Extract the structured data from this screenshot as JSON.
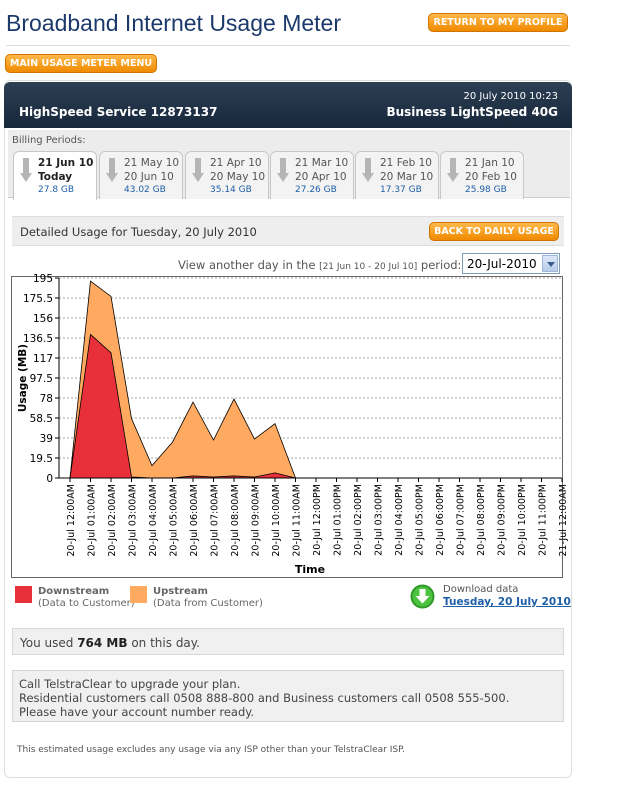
{
  "header": {
    "title": "Broadband Internet Usage Meter",
    "return_button": "RETURN TO MY PROFILE",
    "menu_button": "MAIN USAGE METER MENU"
  },
  "service": {
    "datetime": "20 July 2010 10:23",
    "name": "HighSpeed Service 12873137",
    "plan": "Business LightSpeed 40G"
  },
  "billing": {
    "label": "Billing Periods:",
    "periods": [
      {
        "start": "21 Jun 10",
        "end": "Today",
        "usage": "27.8 GB",
        "active": true
      },
      {
        "start": "21 May 10",
        "end": "20 Jun 10",
        "usage": "43.02 GB",
        "active": false
      },
      {
        "start": "21 Apr 10",
        "end": "20 May 10",
        "usage": "35.14 GB",
        "active": false
      },
      {
        "start": "21 Mar 10",
        "end": "20 Apr 10",
        "usage": "27.26 GB",
        "active": false
      },
      {
        "start": "21 Feb 10",
        "end": "20 Mar 10",
        "usage": "17.37 GB",
        "active": false
      },
      {
        "start": "21 Jan 10",
        "end": "20 Feb 10",
        "usage": "25.98 GB",
        "active": false
      }
    ]
  },
  "detail": {
    "title": "Detailed Usage for Tuesday, 20 July 2010",
    "back_button": "BACK TO DAILY USAGE",
    "view_prefix": "View another day in the",
    "view_range": "[21 Jun 10 - 20 Jul 10]",
    "view_suffix": "period:",
    "selected_date": "20-Jul-2010"
  },
  "chart_data": {
    "type": "area",
    "ylabel": "Usage (MB)",
    "xlabel": "Time",
    "ylim": [
      0,
      195
    ],
    "yticks": [
      0,
      19.5,
      39,
      58.5,
      78,
      97.5,
      117,
      136.5,
      156,
      175.5,
      195
    ],
    "categories": [
      "20-Jul 12:00AM",
      "20-Jul 01:00AM",
      "20-Jul 02:00AM",
      "20-Jul 03:00AM",
      "20-Jul 04:00AM",
      "20-Jul 05:00AM",
      "20-Jul 06:00AM",
      "20-Jul 07:00AM",
      "20-Jul 08:00AM",
      "20-Jul 09:00AM",
      "20-Jul 10:00AM",
      "20-Jul 11:00AM",
      "20-Jul 12:00PM",
      "20-Jul 01:00PM",
      "20-Jul 02:00PM",
      "20-Jul 03:00PM",
      "20-Jul 04:00PM",
      "20-Jul 05:00PM",
      "20-Jul 06:00PM",
      "20-Jul 07:00PM",
      "20-Jul 08:00PM",
      "20-Jul 09:00PM",
      "20-Jul 10:00PM",
      "20-Jul 11:00PM",
      "21-Jul 12:00AM"
    ],
    "stacked": true,
    "grid": true,
    "series": [
      {
        "name": "Downstream",
        "color": "#e8303a",
        "values": [
          0,
          140,
          122,
          1,
          0,
          0,
          2,
          1,
          2,
          1,
          5,
          0,
          0,
          0,
          0,
          0,
          0,
          0,
          0,
          0,
          0,
          0,
          0,
          0,
          0
        ]
      },
      {
        "name": "Upstream",
        "color": "#ffaa60",
        "values": [
          0,
          52,
          55,
          57,
          12,
          35,
          72,
          36,
          75,
          37,
          48,
          0,
          0,
          0,
          0,
          0,
          0,
          0,
          0,
          0,
          0,
          0,
          0,
          0,
          0
        ]
      }
    ]
  },
  "legend": {
    "downstream": {
      "label": "Downstream",
      "sub": "(Data to Customer)"
    },
    "upstream": {
      "label": "Upstream",
      "sub": "(Data from Customer)"
    }
  },
  "download": {
    "title": "Download data",
    "link": "Tuesday, 20 July 2010"
  },
  "usage_summary": {
    "prefix": "You used",
    "amount": "764 MB",
    "suffix": "on this day."
  },
  "call": {
    "line1": "Call TelstraClear to upgrade your plan.",
    "line2": "Residential customers call 0508 888-800 and Business customers call 0508 555-500.",
    "line3": "Please have your account number ready."
  },
  "footnote": "This estimated usage excludes any usage via any ISP other than your TelstraClear ISP."
}
